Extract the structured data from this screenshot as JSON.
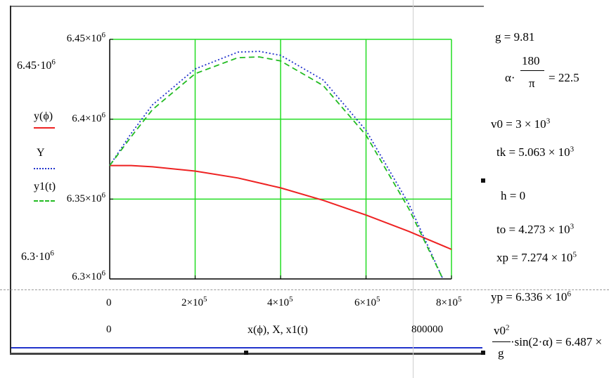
{
  "plot": {
    "yaxis_top": "6.45·10",
    "yaxis_top_exp": "6",
    "yaxis_bottom": "6.3·10",
    "yaxis_bottom_exp": "6",
    "ytick_labels": [
      {
        "text": "6.45×10",
        "exp": "6"
      },
      {
        "text": "6.4×10",
        "exp": "6"
      },
      {
        "text": "6.35×10",
        "exp": "6"
      },
      {
        "text": "6.3×10",
        "exp": "6"
      }
    ],
    "xtick_labels": [
      {
        "text": "0",
        "exp": ""
      },
      {
        "text": "2×10",
        "exp": "5"
      },
      {
        "text": "4×10",
        "exp": "5"
      },
      {
        "text": "6×10",
        "exp": "5"
      },
      {
        "text": "8×10",
        "exp": "5"
      }
    ],
    "xaxis_min": "0",
    "xaxis_max": "800000",
    "xlabel": "x(ϕ), X, x1(t)",
    "legend": [
      {
        "label": "y(ϕ)",
        "color": "#ee2222",
        "style": "solid"
      },
      {
        "label": "Y",
        "color": "#2233cc",
        "style": "dotted"
      },
      {
        "label": "y1(t)",
        "color": "#22bb22",
        "style": "dashed"
      }
    ],
    "grid_color": "#22dd22"
  },
  "chart_data": {
    "type": "line",
    "xlim": [
      0,
      800000
    ],
    "ylim": [
      6300000,
      6450000
    ],
    "grid": true,
    "legend_placement": "left",
    "series": [
      {
        "name": "y(ϕ)",
        "color": "#ee2222",
        "x": [
          0,
          50000,
          100000,
          200000,
          300000,
          400000,
          500000,
          600000,
          700000,
          800000
        ],
        "y": [
          6371000,
          6371000,
          6370200,
          6367500,
          6363200,
          6357000,
          6349200,
          6340000,
          6329800,
          6318500
        ]
      },
      {
        "name": "Y",
        "color": "#2233cc",
        "x": [
          0,
          50000,
          100000,
          200000,
          300000,
          350000,
          400000,
          500000,
          600000,
          700000,
          780000
        ],
        "y": [
          6371000,
          6391000,
          6409000,
          6431500,
          6442000,
          6442500,
          6440000,
          6424500,
          6393000,
          6347000,
          6300000
        ]
      },
      {
        "name": "y1(t)",
        "color": "#22bb22",
        "x": [
          0,
          50000,
          100000,
          200000,
          300000,
          350000,
          400000,
          500000,
          600000,
          700000,
          780000
        ],
        "y": [
          6371000,
          6389000,
          6406000,
          6428500,
          6438500,
          6439000,
          6436500,
          6421000,
          6390000,
          6344000,
          6300000
        ]
      }
    ]
  },
  "math": {
    "g": {
      "lhs": "g",
      "val": "9.81"
    },
    "alpha": {
      "lhs": "α·",
      "num": "180",
      "den": "π",
      "val": "= 22.5"
    },
    "v0": {
      "text": "v0 = 3 × 10",
      "exp": "3"
    },
    "tk": {
      "text": "tk = 5.063 × 10",
      "exp": "3"
    },
    "h": {
      "text": "h = 0"
    },
    "to": {
      "text": "to = 4.273 × 10",
      "exp": "3"
    },
    "xp": {
      "text": "xp = 7.274 × 10",
      "exp": "5"
    },
    "yp": {
      "text": "yp = 6.336 × 10",
      "exp": "6"
    },
    "range": {
      "num": "v0",
      "num_exp": "2",
      "den": "g",
      "rest": "·sin(2·α) = 6.487 ×"
    }
  }
}
